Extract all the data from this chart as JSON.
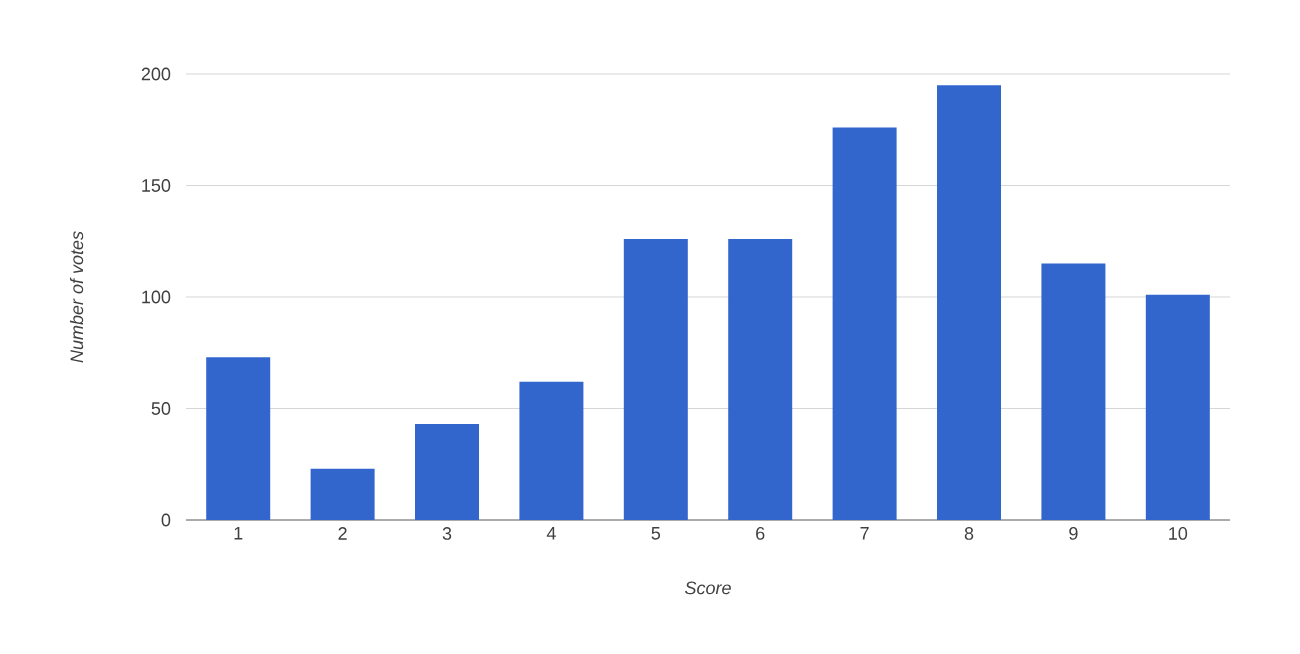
{
  "chart_data": {
    "type": "bar",
    "xlabel": "Score",
    "ylabel": "Number of votes",
    "categories": [
      "1",
      "2",
      "3",
      "4",
      "5",
      "6",
      "7",
      "8",
      "9",
      "10"
    ],
    "values": [
      73,
      23,
      43,
      62,
      126,
      126,
      176,
      195,
      115,
      101
    ],
    "color": "#3366cc",
    "ylim": [
      0,
      200
    ],
    "yticks": [
      0,
      50,
      100,
      150,
      200
    ],
    "grid": "y"
  }
}
